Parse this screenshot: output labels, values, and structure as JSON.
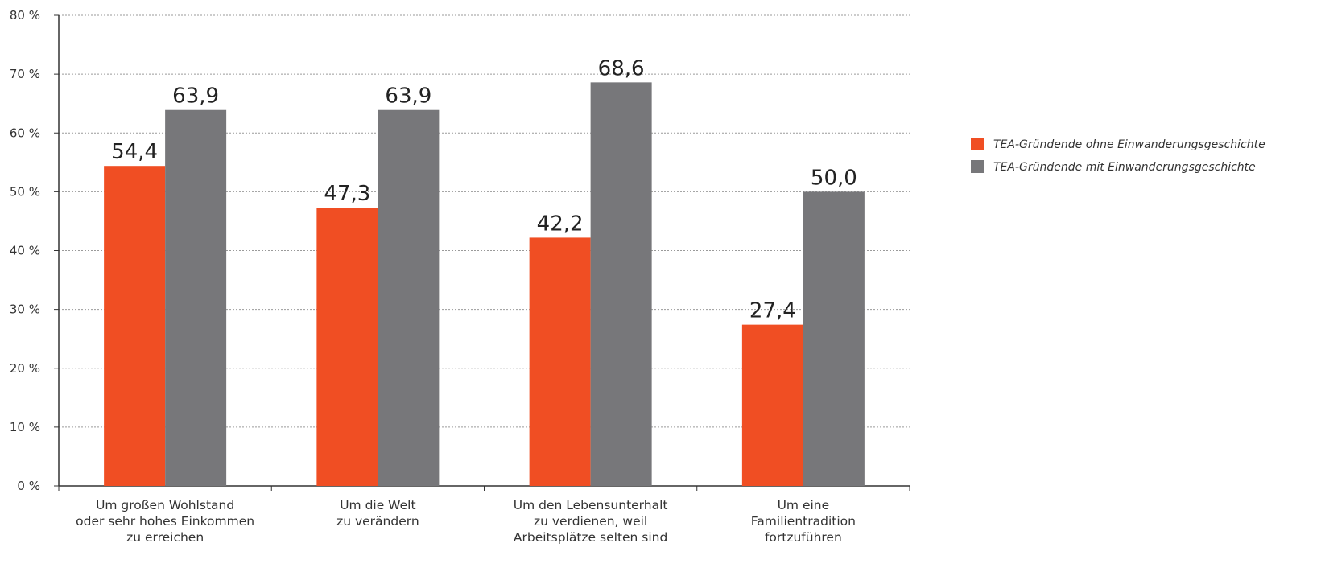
{
  "chart_data": {
    "type": "bar",
    "categories": [
      [
        "Um großen Wohlstand",
        "oder sehr hohes Einkommen",
        "zu erreichen"
      ],
      [
        "Um die Welt",
        "zu verändern"
      ],
      [
        "Um den Lebensunterhalt",
        "zu verdienen, weil",
        "Arbeitsplätze selten sind"
      ],
      [
        "Um eine",
        "Familientradition",
        "fortzuführen"
      ]
    ],
    "series": [
      {
        "name": "TEA-Gründende ohne Einwanderungsgeschichte",
        "values": [
          54.4,
          47.3,
          42.2,
          27.4
        ],
        "value_labels": [
          "54,4",
          "47,3",
          "42,2",
          "27,4"
        ],
        "color": "#F04E23"
      },
      {
        "name": "TEA-Gründende mit Einwanderungsgeschichte",
        "values": [
          63.9,
          63.9,
          68.6,
          50.0
        ],
        "value_labels": [
          "63,9",
          "63,9",
          "68,6",
          "50,0"
        ],
        "color": "#77777A"
      }
    ],
    "ylim": [
      0,
      80
    ],
    "yticks": [
      0,
      10,
      20,
      30,
      40,
      50,
      60,
      70,
      80
    ],
    "ytick_labels": [
      "0 %",
      "10 %",
      "20 %",
      "30 %",
      "40 %",
      "50 %",
      "60 %",
      "70 %",
      "80 %"
    ],
    "grid": true,
    "grid_style": "dotted",
    "legend_position": "right",
    "title": "",
    "xlabel": "",
    "ylabel": ""
  }
}
